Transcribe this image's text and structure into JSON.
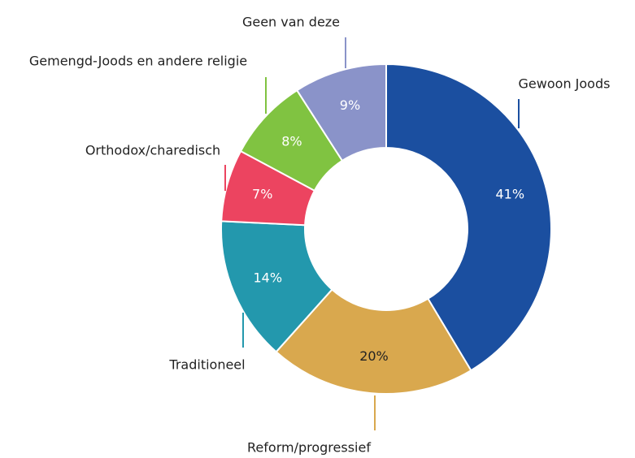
{
  "chart_data": {
    "type": "donut",
    "categories": [
      "Gewoon Joods",
      "Reform/progressief",
      "Traditioneel",
      "Orthodox/charedisch",
      "Gemengd-Joods en andere religie",
      "Geen van deze"
    ],
    "values": [
      41,
      20,
      14,
      7,
      8,
      9
    ],
    "value_labels": [
      "41%",
      "20%",
      "14%",
      "7%",
      "8%",
      "9%"
    ],
    "colors": [
      "#1b4fa0",
      "#d9a84e",
      "#2398ad",
      "#ec4460",
      "#80c341",
      "#8a93c9"
    ]
  }
}
